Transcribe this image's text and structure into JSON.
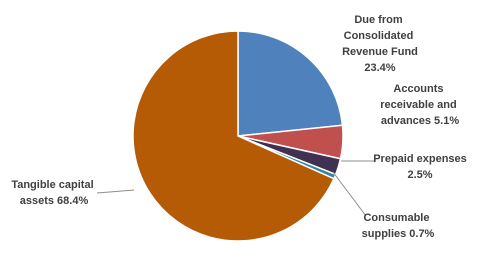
{
  "chart_data": {
    "type": "pie",
    "categories": [
      "Due from Consolidated Revenue Fund",
      "Accounts receivable and advances",
      "Prepaid expenses",
      "Consumable supplies",
      "Tangible capital assets"
    ],
    "values": [
      23.4,
      5.1,
      2.5,
      0.7,
      68.4
    ],
    "value_labels": [
      "23.4%",
      "5.1%",
      "2.5%",
      "0.7%",
      "68.4%"
    ],
    "colors": [
      "#4f81bd",
      "#c0504d",
      "#403152",
      "#31859c",
      "#b55a05"
    ]
  }
}
